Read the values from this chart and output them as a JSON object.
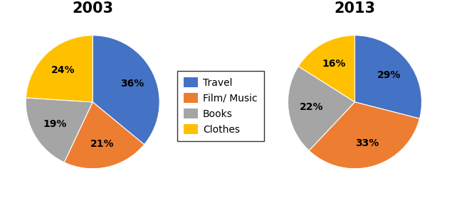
{
  "title_2003": "2003",
  "title_2013": "2013",
  "labels": [
    "Travel",
    "Film/ Music",
    "Books",
    "Clothes"
  ],
  "colors": [
    "#4472C4",
    "#ED7D31",
    "#A5A5A5",
    "#FFC000"
  ],
  "values_2003": [
    36,
    21,
    19,
    24
  ],
  "values_2013": [
    29,
    33,
    22,
    16
  ],
  "pct_2003": [
    "36%",
    "21%",
    "19%",
    "24%"
  ],
  "pct_2013": [
    "29%",
    "33%",
    "22%",
    "16%"
  ],
  "background_color": "#FFFFFF",
  "title_fontsize": 15,
  "label_fontsize": 10,
  "legend_fontsize": 10,
  "startangle_2003": 90,
  "startangle_2013": 90
}
